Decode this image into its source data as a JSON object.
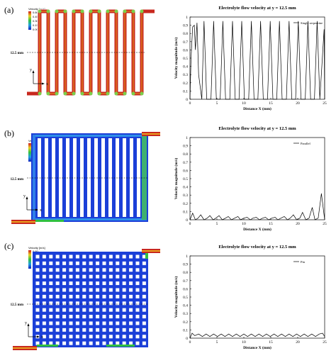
{
  "panels": [
    {
      "label": "(a)",
      "legend": {
        "title": "Velocity [m/s]",
        "ticks": [
          "0.60",
          "0.45",
          "0.30",
          "0.15",
          "0.00"
        ]
      },
      "marker_text": "12.5 mm",
      "axes": {
        "y": "y",
        "x": "x"
      }
    },
    {
      "label": "(b)",
      "legend": {
        "title": "Velocity [m/s]",
        "ticks": [
          "0.60",
          "0.45",
          "0.30",
          "0.15",
          "0.00"
        ]
      },
      "marker_text": "12.5 mm",
      "axes": {
        "y": "y",
        "x": "x"
      }
    },
    {
      "label": "(c)",
      "legend": {
        "title": "Velocity [m/s]",
        "ticks": [
          "0.60",
          "0.45",
          "0.30",
          "0.15",
          "0.00"
        ]
      },
      "marker_text": "12.5 mm",
      "axes": {
        "y": "y",
        "x": "x"
      }
    }
  ],
  "chart_data": [
    {
      "type": "line",
      "title": "Electrolyte flow velocity at y = 12.5 mm",
      "xlabel": "Distance X (mm)",
      "ylabel": "Velocity magnitude (m/s)",
      "xlim": [
        0,
        25
      ],
      "ylim": [
        0,
        1
      ],
      "xticks": [
        0,
        5,
        10,
        15,
        20,
        25
      ],
      "yticks": [
        0,
        0.1,
        0.2,
        0.3,
        0.4,
        0.5,
        0.6,
        0.7,
        0.8,
        0.9,
        1
      ],
      "legend": "top-right",
      "series": [
        {
          "name": "Single serpentine",
          "x": [
            0,
            0.2,
            0.5,
            0.8,
            1.0,
            1.3,
            1.6,
            2.2,
            2.6,
            3.1,
            3.9,
            4.4,
            4.9,
            5.6,
            6.1,
            6.6,
            7.4,
            7.9,
            8.4,
            9.1,
            9.6,
            10.1,
            10.9,
            11.4,
            11.9,
            12.6,
            13.1,
            13.6,
            14.4,
            14.9,
            15.4,
            16.1,
            16.6,
            17.1,
            17.9,
            18.4,
            18.9,
            19.6,
            20.1,
            20.6,
            21.4,
            21.9,
            22.4,
            23.1,
            23.6,
            24.1,
            24.9,
            25
          ],
          "y": [
            0,
            0.5,
            0.88,
            0.9,
            0.6,
            0.93,
            0.3,
            0,
            0.95,
            0,
            0,
            0.95,
            0,
            0,
            0.95,
            0,
            0,
            0.95,
            0,
            0,
            0.95,
            0,
            0,
            0.95,
            0,
            0,
            0.95,
            0,
            0,
            0.95,
            0,
            0,
            0.95,
            0,
            0,
            0.95,
            0,
            0,
            0.95,
            0,
            0,
            0.95,
            0,
            0,
            0.95,
            0,
            0.85,
            0
          ]
        }
      ]
    },
    {
      "type": "line",
      "title": "Electrolyte flow velocity at y = 12.5 mm",
      "xlabel": "Distance X (mm)",
      "ylabel": "Velocity magnitude (m/s)",
      "xlim": [
        0,
        25
      ],
      "ylim": [
        0,
        1
      ],
      "xticks": [
        0,
        5,
        10,
        15,
        20,
        25
      ],
      "yticks": [
        0,
        0.1,
        0.2,
        0.3,
        0.4,
        0.5,
        0.6,
        0.7,
        0.8,
        0.9,
        1
      ],
      "legend": "top-right",
      "series": [
        {
          "name": "Parallel",
          "x": [
            0,
            0.5,
            1.0,
            1.5,
            2.0,
            2.6,
            3.2,
            3.7,
            4.3,
            4.8,
            5.4,
            6.0,
            6.6,
            7.1,
            7.7,
            8.3,
            8.9,
            9.4,
            10.0,
            10.6,
            11.2,
            11.7,
            12.3,
            12.9,
            13.5,
            14.0,
            14.6,
            15.2,
            15.8,
            16.3,
            16.9,
            17.5,
            18.1,
            18.6,
            19.2,
            19.8,
            20.4,
            20.9,
            21.5,
            22.1,
            22.7,
            23.2,
            23.8,
            24.4,
            25
          ],
          "y": [
            0,
            0.08,
            0,
            0.02,
            0.06,
            0,
            0.02,
            0.05,
            0,
            0.02,
            0.05,
            0,
            0.02,
            0.04,
            0,
            0.02,
            0.04,
            0,
            0.02,
            0.03,
            0,
            0.02,
            0.03,
            0,
            0.02,
            0.03,
            0,
            0.02,
            0.03,
            0,
            0.02,
            0.04,
            0,
            0.02,
            0.06,
            0,
            0.02,
            0.09,
            0,
            0.02,
            0.15,
            0,
            0.02,
            0.32,
            0
          ]
        }
      ]
    },
    {
      "type": "line",
      "title": "Electrolyte flow velocity at y = 12.5 mm",
      "xlabel": "Distance X (mm)",
      "ylabel": "Velocity magnitude (m/s)",
      "xlim": [
        0,
        25
      ],
      "ylim": [
        0,
        1
      ],
      "xticks": [
        0,
        5,
        10,
        15,
        20,
        25
      ],
      "yticks": [
        0,
        0.1,
        0.2,
        0.3,
        0.4,
        0.5,
        0.6,
        0.7,
        0.8,
        0.9,
        1
      ],
      "legend": "top-right",
      "series": [
        {
          "name": "Pin",
          "x": [
            0,
            0.4,
            0.9,
            1.6,
            2.3,
            3.0,
            3.7,
            4.4,
            5.1,
            5.8,
            6.5,
            7.2,
            7.9,
            8.6,
            9.3,
            10.0,
            10.7,
            11.4,
            12.1,
            12.8,
            13.5,
            14.2,
            14.9,
            15.6,
            16.3,
            17.0,
            17.7,
            18.4,
            19.1,
            19.8,
            20.5,
            21.2,
            21.9,
            22.6,
            23.3,
            24.0,
            24.6,
            25
          ],
          "y": [
            0,
            0.06,
            0.03,
            0.05,
            0.02,
            0.05,
            0.02,
            0.05,
            0.02,
            0.05,
            0.02,
            0.05,
            0.02,
            0.05,
            0.02,
            0.05,
            0.02,
            0.05,
            0.02,
            0.05,
            0.02,
            0.05,
            0.02,
            0.05,
            0.02,
            0.05,
            0.02,
            0.05,
            0.02,
            0.05,
            0.02,
            0.05,
            0.02,
            0.05,
            0.02,
            0.05,
            0.06,
            0.02
          ]
        }
      ]
    }
  ],
  "colors": {
    "cfd_red": "#c8281e",
    "cfd_blue": "#1b3fd8",
    "cfd_lightblue": "#2f8fe8",
    "cfd_green": "#4ec83c",
    "cfd_yellow": "#e8e030",
    "line": "#000000"
  }
}
